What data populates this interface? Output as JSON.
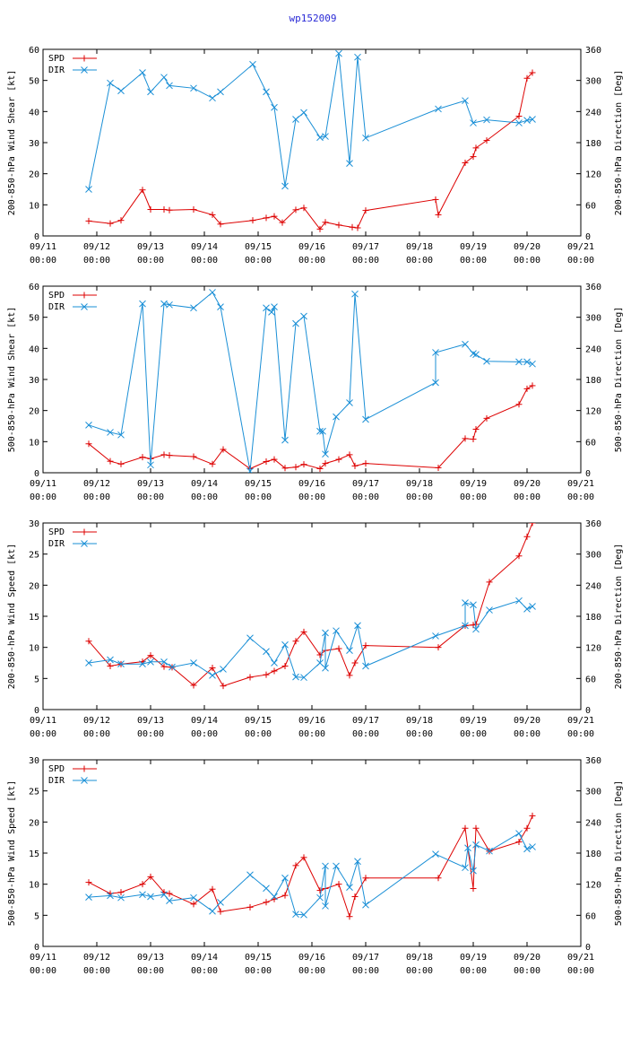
{
  "title": "wp152009",
  "colors": {
    "spd": "#dd0000",
    "dir": "#1a8fd6",
    "title": "#2a2ad6",
    "axis": "#000000"
  },
  "chart_data": [
    {
      "type": "line",
      "name": "shear-200-850",
      "ylabel": "200-850-hPa Wind Shear [kt]",
      "y2label": "200-850-hPa Direction [Deg]",
      "ylim": [
        0,
        60
      ],
      "yticks": [
        0,
        10,
        20,
        30,
        40,
        50,
        60
      ],
      "y2lim": [
        0,
        360
      ],
      "y2ticks": [
        0,
        60,
        120,
        180,
        240,
        300,
        360
      ],
      "series": [
        {
          "name": "SPD",
          "axis": "y1",
          "x": [
            11.85,
            12.25,
            12.45,
            12.85,
            13.0,
            13.25,
            13.35,
            13.8,
            14.15,
            14.3,
            14.9,
            15.15,
            15.3,
            15.45,
            15.7,
            15.85,
            16.15,
            16.25,
            16.5,
            16.75,
            16.85,
            17.0,
            18.3,
            18.35,
            18.85,
            19.0,
            19.05,
            19.25,
            19.85,
            20.0,
            20.1
          ],
          "values": [
            4.8,
            4.0,
            5.0,
            14.8,
            8.5,
            8.5,
            8.3,
            8.5,
            6.8,
            3.8,
            5.0,
            5.8,
            6.3,
            4.3,
            8.4,
            9.0,
            2.2,
            4.4,
            3.5,
            2.8,
            2.6,
            8.2,
            11.7,
            6.8,
            23.5,
            25.5,
            28.3,
            30.7,
            38.5,
            50.7,
            52.5
          ]
        },
        {
          "name": "DIR",
          "axis": "y2",
          "x": [
            11.85,
            12.25,
            12.45,
            12.85,
            13.0,
            13.25,
            13.35,
            13.8,
            14.15,
            14.3,
            14.9,
            15.15,
            15.3,
            15.5,
            15.7,
            15.85,
            16.15,
            16.25,
            16.5,
            16.7,
            16.85,
            17.0,
            18.35,
            18.85,
            19.0,
            19.25,
            19.85,
            20.0,
            20.1
          ],
          "values": [
            90,
            295,
            280,
            315,
            278,
            306,
            290,
            285,
            266,
            278,
            331,
            278,
            248,
            96,
            225,
            238,
            190,
            192,
            352,
            140,
            345,
            189,
            245,
            261,
            218,
            224,
            218,
            223,
            225
          ]
        }
      ]
    },
    {
      "type": "line",
      "name": "shear-500-850",
      "ylabel": "500-850-hPa Wind Shear [kt]",
      "y2label": "500-850-hPa Direction [Deg]",
      "ylim": [
        0,
        60
      ],
      "yticks": [
        0,
        10,
        20,
        30,
        40,
        50,
        60
      ],
      "y2lim": [
        0,
        360
      ],
      "y2ticks": [
        0,
        60,
        120,
        180,
        240,
        300,
        360
      ],
      "series": [
        {
          "name": "SPD",
          "axis": "y1",
          "x": [
            11.85,
            12.25,
            12.45,
            12.85,
            13.0,
            13.25,
            13.35,
            13.8,
            14.15,
            14.35,
            14.85,
            15.15,
            15.3,
            15.5,
            15.7,
            15.85,
            16.15,
            16.25,
            16.5,
            16.7,
            16.8,
            17.0,
            18.35,
            18.85,
            19.0,
            19.05,
            19.25,
            19.85,
            20.0,
            20.1
          ],
          "values": [
            9.3,
            3.7,
            2.8,
            5.0,
            4.5,
            5.8,
            5.6,
            5.2,
            2.8,
            7.5,
            1.3,
            3.6,
            4.3,
            1.5,
            1.8,
            2.7,
            1.3,
            3.0,
            4.3,
            5.8,
            2.2,
            3.0,
            1.6,
            11.0,
            10.8,
            14.0,
            17.5,
            22.0,
            27.0,
            28.0
          ]
        },
        {
          "name": "DIR",
          "axis": "y2",
          "x": [
            11.85,
            12.25,
            12.45,
            12.85,
            13.0,
            13.25,
            13.35,
            13.8,
            14.15,
            14.3,
            14.85,
            15.15,
            15.25,
            15.3,
            15.5,
            15.7,
            15.85,
            16.15,
            16.2,
            16.25,
            16.45,
            16.7,
            16.8,
            17.0,
            18.3,
            18.3,
            18.85,
            19.0,
            19.05,
            19.25,
            19.85,
            20.0,
            20.1
          ],
          "values": [
            92,
            78,
            73,
            326,
            15,
            326,
            324,
            318,
            348,
            320,
            3,
            318,
            310,
            320,
            63,
            288,
            302,
            80,
            80,
            36,
            108,
            135,
            345,
            103,
            174,
            232,
            248,
            230,
            228,
            215,
            214,
            214,
            210
          ]
        }
      ]
    },
    {
      "type": "line",
      "name": "speed-200-850",
      "ylabel": "200-850-hPa Wind Speed [kt]",
      "y2label": "200-850-hPa Direction [Deg]",
      "ylim": [
        0,
        30
      ],
      "yticks": [
        0,
        5,
        10,
        15,
        20,
        25,
        30
      ],
      "y2lim": [
        0,
        360
      ],
      "y2ticks": [
        0,
        60,
        120,
        180,
        240,
        300,
        360
      ],
      "series": [
        {
          "name": "SPD",
          "axis": "y1",
          "x": [
            11.85,
            12.25,
            12.45,
            12.85,
            13.0,
            13.25,
            13.4,
            13.8,
            14.15,
            14.35,
            14.85,
            15.15,
            15.3,
            15.5,
            15.7,
            15.85,
            16.15,
            16.25,
            16.5,
            16.7,
            16.8,
            17.0,
            18.35,
            18.85,
            19.0,
            19.05,
            19.3,
            19.85,
            20.0,
            20.1
          ],
          "values": [
            11.0,
            7.0,
            7.3,
            7.7,
            8.7,
            6.9,
            6.8,
            3.9,
            6.7,
            3.8,
            5.2,
            5.6,
            6.2,
            7.0,
            11.0,
            12.5,
            8.8,
            9.5,
            9.8,
            5.5,
            7.5,
            10.3,
            10.0,
            13.5,
            13.6,
            13.7,
            20.5,
            24.7,
            27.8,
            30.0
          ]
        },
        {
          "name": "DIR",
          "axis": "y2",
          "x": [
            11.85,
            12.25,
            12.45,
            12.85,
            13.0,
            13.25,
            13.4,
            13.8,
            14.15,
            14.35,
            14.85,
            15.15,
            15.3,
            15.5,
            15.7,
            15.85,
            16.15,
            16.25,
            16.25,
            16.45,
            16.7,
            16.85,
            17.0,
            18.3,
            18.85,
            18.85,
            19.0,
            19.05,
            19.3,
            19.85,
            20.0,
            20.1
          ],
          "values": [
            90,
            96,
            88,
            88,
            92,
            92,
            82,
            90,
            66,
            78,
            138,
            112,
            90,
            125,
            63,
            62,
            90,
            148,
            80,
            152,
            114,
            162,
            84,
            142,
            162,
            206,
            202,
            155,
            192,
            210,
            194,
            199
          ]
        }
      ]
    },
    {
      "type": "line",
      "name": "speed-500-850",
      "ylabel": "500-850-hPa Wind Speed [kt]",
      "y2label": "500-850-hPa Direction [Deg]",
      "ylim": [
        0,
        30
      ],
      "yticks": [
        0,
        5,
        10,
        15,
        20,
        25,
        30
      ],
      "y2lim": [
        0,
        360
      ],
      "y2ticks": [
        0,
        60,
        120,
        180,
        240,
        300,
        360
      ],
      "series": [
        {
          "name": "SPD",
          "axis": "y1",
          "x": [
            11.85,
            12.25,
            12.45,
            12.85,
            13.0,
            13.25,
            13.35,
            13.8,
            14.15,
            14.3,
            14.85,
            15.15,
            15.3,
            15.5,
            15.7,
            15.85,
            16.15,
            16.25,
            16.5,
            16.7,
            16.8,
            17.0,
            18.35,
            18.85,
            19.0,
            19.05,
            19.3,
            19.85,
            20.0,
            20.1
          ],
          "values": [
            10.3,
            8.5,
            8.7,
            10.0,
            11.2,
            8.7,
            8.5,
            6.8,
            9.2,
            5.6,
            6.3,
            7.1,
            7.6,
            8.2,
            13.0,
            14.3,
            9.0,
            9.3,
            10.0,
            4.8,
            8.0,
            11.0,
            11.0,
            19.0,
            9.3,
            19.0,
            15.3,
            16.8,
            19.0,
            21.0
          ]
        },
        {
          "name": "DIR",
          "axis": "y2",
          "x": [
            11.85,
            12.25,
            12.45,
            12.85,
            13.0,
            13.25,
            13.35,
            13.8,
            14.15,
            14.3,
            14.85,
            15.15,
            15.3,
            15.5,
            15.7,
            15.85,
            16.15,
            16.25,
            16.25,
            16.45,
            16.7,
            16.85,
            17.0,
            18.3,
            18.85,
            18.9,
            19.0,
            19.05,
            19.3,
            19.85,
            20.0,
            20.1
          ],
          "values": [
            95,
            98,
            94,
            100,
            96,
            100,
            88,
            94,
            68,
            85,
            138,
            112,
            96,
            132,
            62,
            61,
            94,
            155,
            78,
            155,
            114,
            164,
            80,
            178,
            152,
            190,
            146,
            196,
            184,
            218,
            188,
            192
          ]
        }
      ]
    }
  ],
  "legend": {
    "spd_label": "SPD",
    "dir_label": "DIR"
  },
  "xaxis": {
    "xlim": [
      11,
      21
    ],
    "ticks": [
      {
        "value": 11,
        "date": "09/11",
        "time": "00:00"
      },
      {
        "value": 12,
        "date": "09/12",
        "time": "00:00"
      },
      {
        "value": 13,
        "date": "09/13",
        "time": "00:00"
      },
      {
        "value": 14,
        "date": "09/14",
        "time": "00:00"
      },
      {
        "value": 15,
        "date": "09/15",
        "time": "00:00"
      },
      {
        "value": 16,
        "date": "09/16",
        "time": "00:00"
      },
      {
        "value": 17,
        "date": "09/17",
        "time": "00:00"
      },
      {
        "value": 18,
        "date": "09/18",
        "time": "00:00"
      },
      {
        "value": 19,
        "date": "09/19",
        "time": "00:00"
      },
      {
        "value": 20,
        "date": "09/20",
        "time": "00:00"
      },
      {
        "value": 21,
        "date": "09/21",
        "time": "00:00"
      }
    ]
  }
}
